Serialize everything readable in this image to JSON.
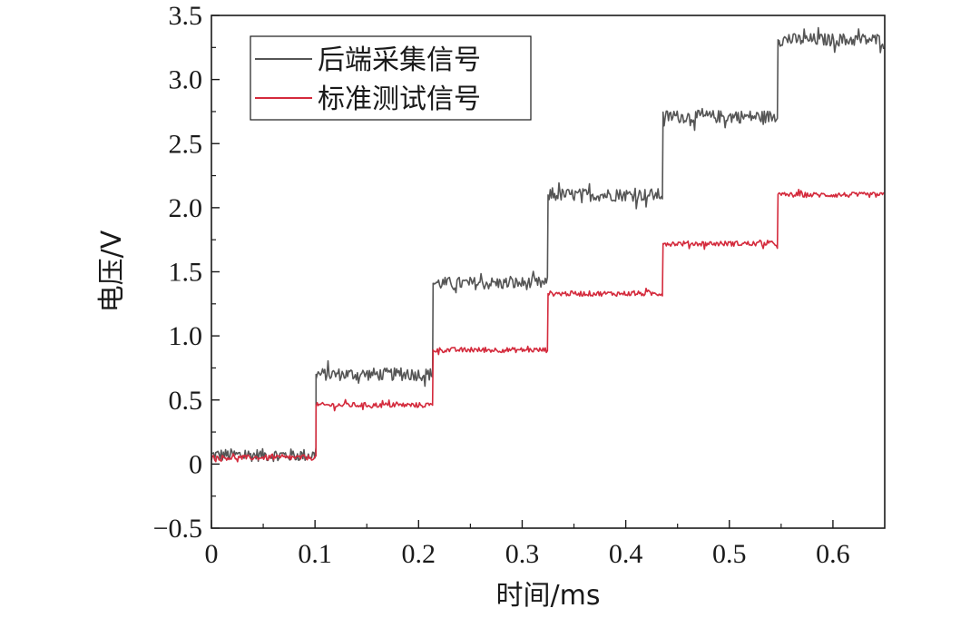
{
  "chart_data": {
    "type": "line",
    "title": "",
    "xlabel": "时间/ms",
    "ylabel": "电压/V",
    "xlim": [
      0,
      0.65
    ],
    "ylim": [
      -0.5,
      3.5
    ],
    "xticks": [
      0,
      0.1,
      0.2,
      0.3,
      0.4,
      0.5,
      0.6
    ],
    "xtick_labels": [
      "0",
      "0.1",
      "0.2",
      "0.3",
      "0.4",
      "0.5",
      "0.6"
    ],
    "yticks": [
      -0.5,
      0,
      0.5,
      1.0,
      1.5,
      2.0,
      2.5,
      3.0,
      3.5
    ],
    "ytick_labels": [
      "−0.5",
      "0",
      "0.5",
      "1.0",
      "1.5",
      "2.0",
      "2.5",
      "3.0",
      "3.5"
    ],
    "grid": false,
    "legend_position": "top-left",
    "series": [
      {
        "name": "后端采集信号",
        "color": "#555555",
        "x": [
          0,
          0.101,
          0.101,
          0.214,
          0.214,
          0.325,
          0.325,
          0.436,
          0.436,
          0.547,
          0.547,
          0.65
        ],
        "values": [
          0.07,
          0.07,
          0.7,
          0.7,
          1.41,
          1.41,
          2.1,
          2.1,
          2.71,
          2.71,
          3.31,
          3.31
        ],
        "noise_band": 0.1
      },
      {
        "name": "标准测试信号",
        "color": "#d42a3c",
        "x": [
          0,
          0.101,
          0.101,
          0.214,
          0.214,
          0.325,
          0.325,
          0.436,
          0.436,
          0.547,
          0.547,
          0.65
        ],
        "values": [
          0.05,
          0.05,
          0.46,
          0.46,
          0.89,
          0.89,
          1.33,
          1.33,
          1.72,
          1.72,
          2.1,
          2.1
        ],
        "noise_band": 0.04
      }
    ]
  }
}
